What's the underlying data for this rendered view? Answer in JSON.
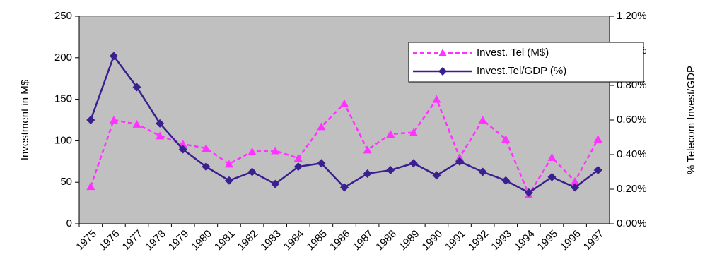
{
  "chart_data": {
    "type": "line",
    "y_label": "Investment in M$",
    "y2_label": "% Telecom Invest/GDP",
    "categories": [
      "1975",
      "1976",
      "1977",
      "1978",
      "1979",
      "1980",
      "1981",
      "1982",
      "1983",
      "1984",
      "1985",
      "1986",
      "1987",
      "1988",
      "1989",
      "1990",
      "1991",
      "1992",
      "1993",
      "1994",
      "1995",
      "1996",
      "1997"
    ],
    "series": [
      {
        "name": "Invest. Tel (M$)",
        "color": "#ff33ff",
        "marker": "triangle",
        "dash": true,
        "values": [
          45,
          125,
          120,
          106,
          96,
          91,
          72,
          87,
          88,
          79,
          117,
          145,
          89,
          108,
          110,
          150,
          80,
          125,
          102,
          35,
          80,
          51,
          102
        ]
      },
      {
        "name": "Invest.Tel/GDP (%)",
        "color": "#3a1f8f",
        "marker": "diamond",
        "axis": "y2",
        "values": [
          0.6,
          0.97,
          0.79,
          0.58,
          0.43,
          0.33,
          0.25,
          0.3,
          0.23,
          0.33,
          0.35,
          0.21,
          0.29,
          0.31,
          0.35,
          0.28,
          0.36,
          0.3,
          0.25,
          0.18,
          0.27,
          0.21,
          0.31
        ]
      }
    ],
    "ylim": [
      0,
      250
    ],
    "yticks": [
      0,
      50,
      100,
      150,
      200,
      250
    ],
    "y2lim": [
      0,
      1.2
    ],
    "y2ticks": [
      {
        "value": 0,
        "label": "0.00%"
      },
      {
        "value": 0.2,
        "label": "0.20%"
      },
      {
        "value": 0.4,
        "label": "0.40%"
      },
      {
        "value": 0.6,
        "label": "0.60%"
      },
      {
        "value": 0.8,
        "label": "0.80%"
      },
      {
        "value": 1.0,
        "label": "1.00%"
      },
      {
        "value": 1.2,
        "label": "1.20%"
      }
    ],
    "legend": "top-right",
    "background": "#c0c0c0"
  }
}
